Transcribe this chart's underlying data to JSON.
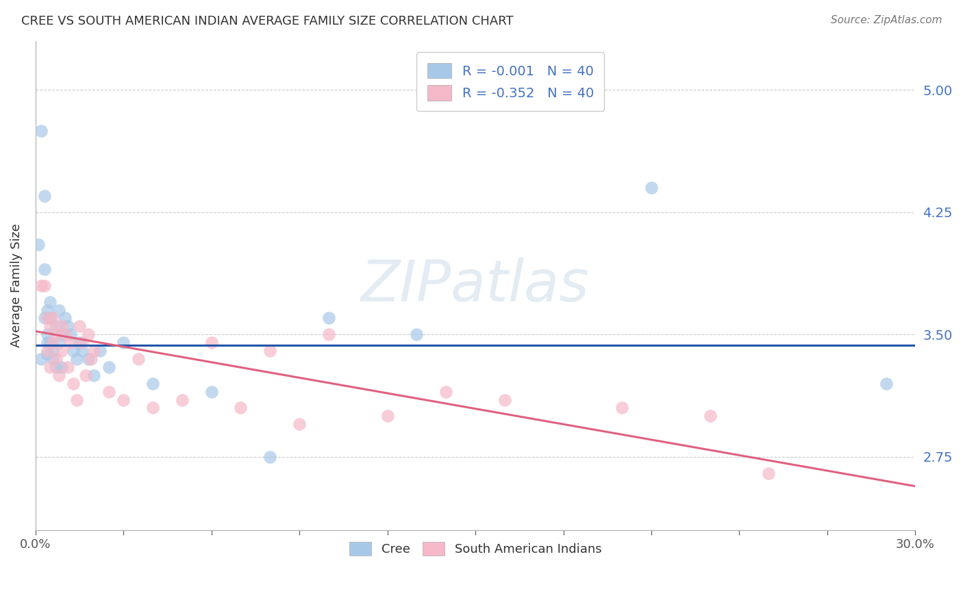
{
  "title": "CREE VS SOUTH AMERICAN INDIAN AVERAGE FAMILY SIZE CORRELATION CHART",
  "source": "Source: ZipAtlas.com",
  "ylabel": "Average Family Size",
  "yticks": [
    2.75,
    3.5,
    4.25,
    5.0
  ],
  "xlim": [
    0.0,
    0.3
  ],
  "ylim": [
    2.3,
    5.3
  ],
  "watermark": "ZIPatlas",
  "legend_label1": "Cree",
  "legend_label2": "South American Indians",
  "blue_color": "#a8c8e8",
  "pink_color": "#f4b8c8",
  "blue_line_color": "#2255aa",
  "pink_line_color": "#e06080",
  "cree_points_x": [
    0.001,
    0.002,
    0.002,
    0.003,
    0.003,
    0.003,
    0.004,
    0.004,
    0.004,
    0.004,
    0.005,
    0.005,
    0.005,
    0.006,
    0.006,
    0.007,
    0.007,
    0.008,
    0.008,
    0.009,
    0.009,
    0.01,
    0.011,
    0.012,
    0.013,
    0.014,
    0.015,
    0.016,
    0.018,
    0.02,
    0.022,
    0.025,
    0.03,
    0.04,
    0.06,
    0.08,
    0.1,
    0.13,
    0.21,
    0.29
  ],
  "cree_points_y": [
    4.05,
    3.35,
    4.75,
    3.9,
    4.35,
    3.6,
    3.5,
    3.45,
    3.38,
    3.65,
    3.7,
    3.6,
    3.45,
    3.4,
    3.35,
    3.55,
    3.3,
    3.65,
    3.45,
    3.5,
    3.3,
    3.6,
    3.55,
    3.5,
    3.4,
    3.35,
    3.45,
    3.4,
    3.35,
    3.25,
    3.4,
    3.3,
    3.45,
    3.2,
    3.15,
    2.75,
    3.6,
    3.5,
    4.4,
    3.2
  ],
  "sai_points_x": [
    0.002,
    0.003,
    0.004,
    0.004,
    0.005,
    0.005,
    0.006,
    0.006,
    0.007,
    0.007,
    0.008,
    0.009,
    0.009,
    0.01,
    0.011,
    0.012,
    0.013,
    0.014,
    0.015,
    0.016,
    0.017,
    0.018,
    0.019,
    0.02,
    0.025,
    0.03,
    0.035,
    0.04,
    0.05,
    0.06,
    0.07,
    0.08,
    0.09,
    0.1,
    0.12,
    0.14,
    0.16,
    0.2,
    0.23,
    0.25
  ],
  "sai_points_y": [
    3.8,
    3.8,
    3.6,
    3.4,
    3.55,
    3.3,
    3.6,
    3.45,
    3.35,
    3.5,
    3.25,
    3.4,
    3.55,
    3.5,
    3.3,
    3.45,
    3.2,
    3.1,
    3.55,
    3.45,
    3.25,
    3.5,
    3.35,
    3.4,
    3.15,
    3.1,
    3.35,
    3.05,
    3.1,
    3.45,
    3.05,
    3.4,
    2.95,
    3.5,
    3.0,
    3.15,
    3.1,
    3.05,
    3.0,
    2.65
  ],
  "cree_trend_x": [
    0.0,
    0.3
  ],
  "cree_trend_y": [
    3.435,
    3.435
  ],
  "sai_trend_x": [
    0.0,
    0.3
  ],
  "sai_trend_y": [
    3.52,
    2.57
  ]
}
